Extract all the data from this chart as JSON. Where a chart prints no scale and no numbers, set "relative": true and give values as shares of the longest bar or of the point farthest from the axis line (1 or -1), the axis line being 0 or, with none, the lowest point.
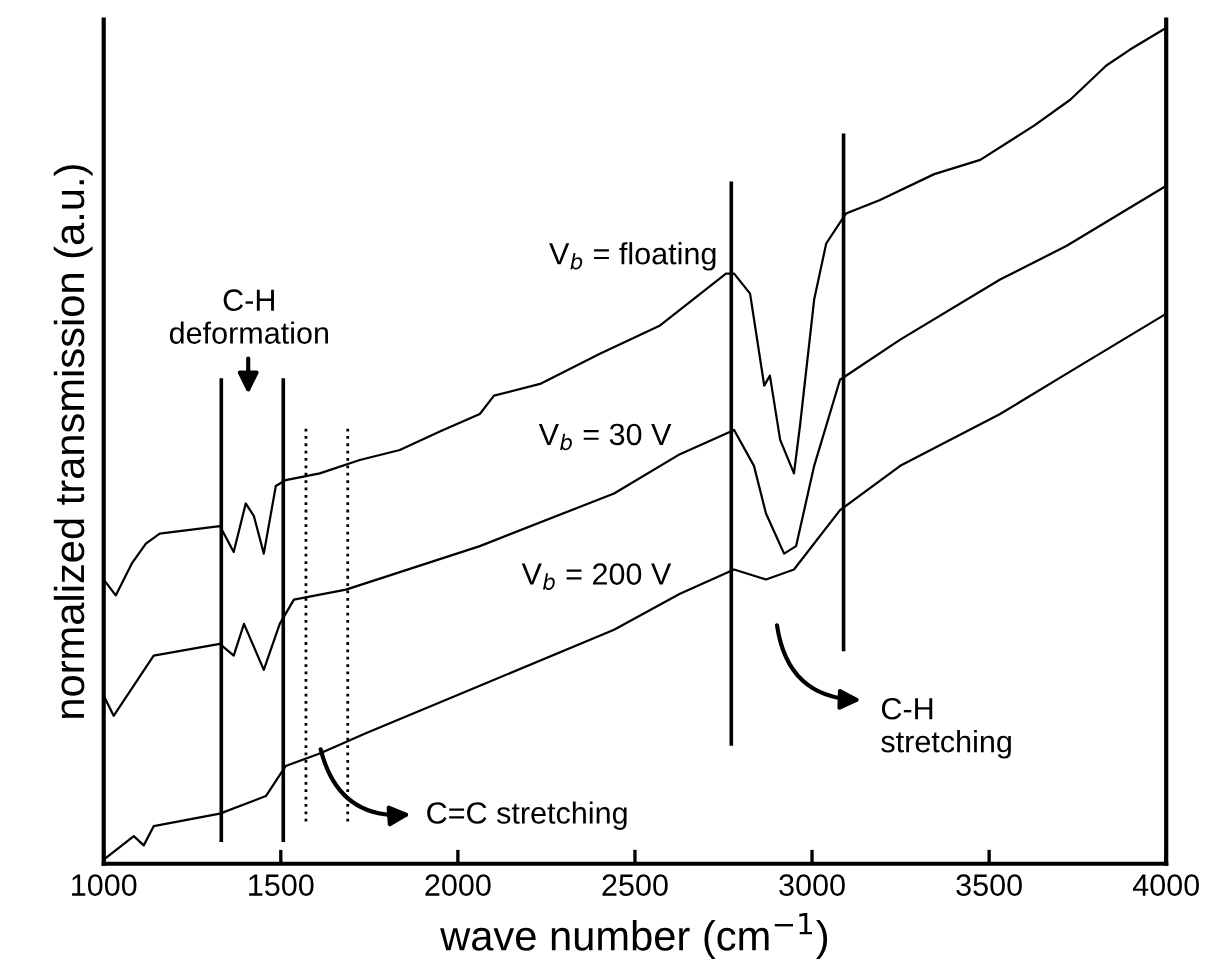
{
  "chart_data": {
    "type": "line",
    "relative": true,
    "xlabel": "wave number (cm$^{−1}$)",
    "ylabel": "normalized transmission (a.u.)",
    "xlim": [
      1000,
      4000
    ],
    "xticks": [
      1000,
      1500,
      2000,
      2500,
      3000,
      3500,
      4000
    ],
    "series": [
      {
        "name": "V$_{b}$ = floating",
        "color": "#000000",
        "x": [
          1000,
          1034,
          1079,
          1119,
          1158,
          1328,
          1367,
          1401,
          1424,
          1452,
          1486,
          1514,
          1610,
          1723,
          1836,
          1949,
          2062,
          2102,
          2232,
          2401,
          2571,
          2757,
          2780,
          2825,
          2865,
          2881,
          2910,
          2949,
          2966,
          3006,
          3040,
          3096,
          3192,
          3345,
          3475,
          3627,
          3729,
          3831,
          3898,
          4000
        ],
        "values": [
          0.34,
          0.321,
          0.359,
          0.383,
          0.395,
          0.404,
          0.373,
          0.431,
          0.416,
          0.371,
          0.452,
          0.459,
          0.467,
          0.483,
          0.495,
          0.517,
          0.538,
          0.56,
          0.574,
          0.61,
          0.644,
          0.706,
          0.706,
          0.682,
          0.572,
          0.584,
          0.507,
          0.467,
          0.524,
          0.675,
          0.742,
          0.778,
          0.794,
          0.825,
          0.842,
          0.883,
          0.914,
          0.955,
          0.974,
          1.0
        ]
      },
      {
        "name": "V$_{b}$ = 30 V",
        "color": "#000000",
        "x": [
          1000,
          1028,
          1141,
          1328,
          1367,
          1396,
          1452,
          1497,
          1537,
          1684,
          2062,
          2441,
          2627,
          2780,
          2836,
          2870,
          2921,
          2955,
          3006,
          3079,
          3249,
          3531,
          3718,
          4000
        ],
        "values": [
          0.201,
          0.177,
          0.249,
          0.263,
          0.249,
          0.287,
          0.232,
          0.287,
          0.316,
          0.328,
          0.38,
          0.443,
          0.49,
          0.519,
          0.476,
          0.419,
          0.371,
          0.38,
          0.476,
          0.579,
          0.627,
          0.699,
          0.739,
          0.811
        ]
      },
      {
        "name": "V$_{b}$ = 200 V",
        "color": "#000000",
        "x": [
          1000,
          1085,
          1113,
          1141,
          1328,
          1458,
          1514,
          1610,
          1740,
          2062,
          2441,
          2627,
          2780,
          2870,
          2949,
          3079,
          3249,
          3531,
          3718,
          4000
        ],
        "values": [
          0.005,
          0.033,
          0.022,
          0.045,
          0.06,
          0.081,
          0.117,
          0.132,
          0.156,
          0.213,
          0.28,
          0.323,
          0.352,
          0.34,
          0.352,
          0.423,
          0.476,
          0.538,
          0.586,
          0.658
        ]
      }
    ],
    "ref_lines": [
      {
        "axis": "x",
        "value": 1332,
        "color": "#000000",
        "line_style": "solid"
      },
      {
        "axis": "x",
        "value": 1507,
        "color": "#000000",
        "line_style": "solid"
      },
      {
        "axis": "x",
        "value": 1571,
        "color": "#000000",
        "line_style": "dotted"
      },
      {
        "axis": "x",
        "value": 1689,
        "color": "#000000",
        "line_style": "dotted"
      },
      {
        "axis": "x",
        "value": 2772,
        "color": "#000000",
        "line_style": "solid"
      },
      {
        "axis": "x",
        "value": 3089,
        "color": "#000000",
        "line_style": "solid"
      }
    ],
    "annotations": [
      "C-H\ndeformation",
      "C=C stretching",
      "C-H\nstretching"
    ]
  }
}
